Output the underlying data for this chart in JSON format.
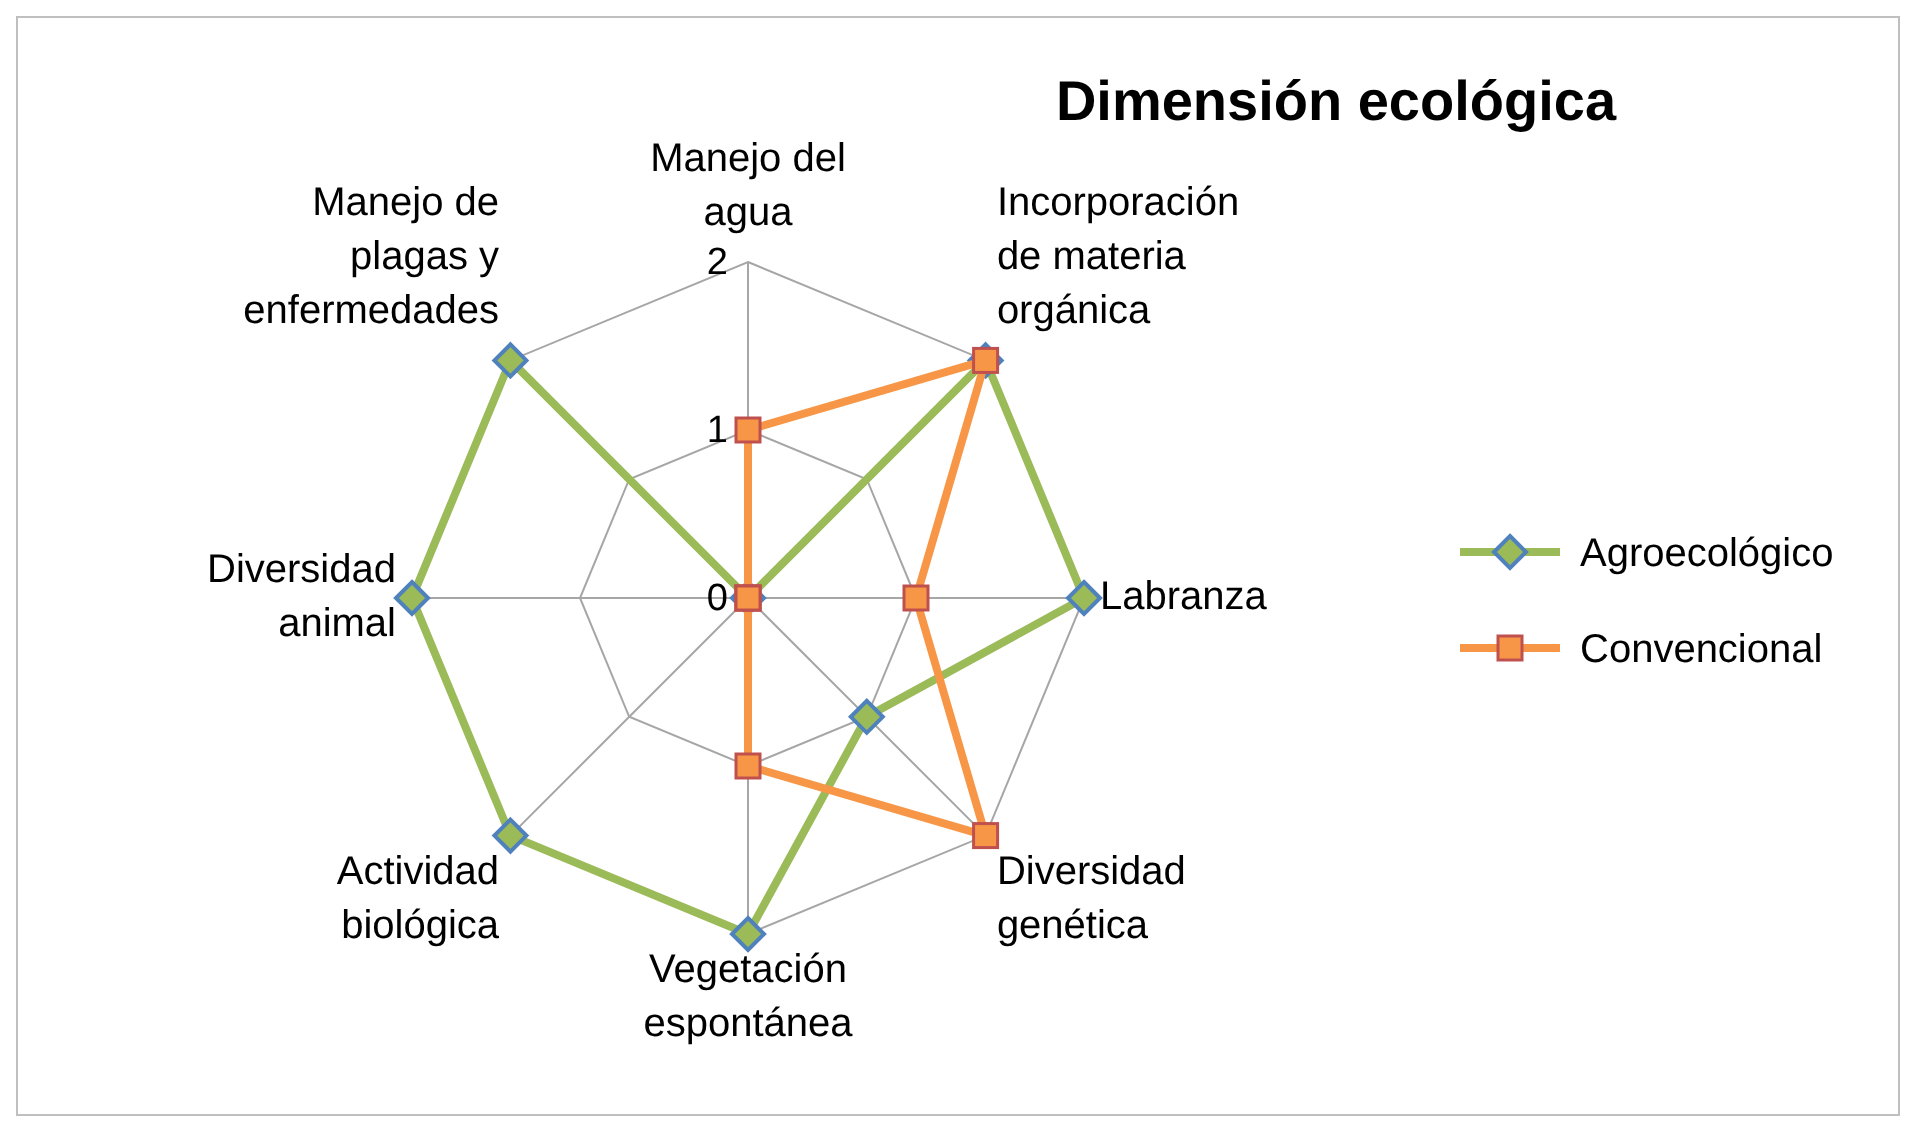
{
  "chart_data": {
    "type": "radar",
    "title": "Dimensión ecológica",
    "categories": [
      "Manejo del agua",
      "Incorporación de materia orgánica",
      "Labranza",
      "Diversidad genética",
      "Vegetación espontánea",
      "Actividad biológica",
      "Diversidad animal",
      "Manejo de plagas y enfermedades"
    ],
    "series": [
      {
        "name": "Agroecológico",
        "color": "#9bbb59",
        "marker": "diamond",
        "values": [
          0,
          2,
          2,
          1,
          2,
          2,
          2,
          2
        ]
      },
      {
        "name": "Convencional",
        "color": "#f79646",
        "marker": "square",
        "values": [
          1,
          2,
          1,
          2,
          1,
          0,
          0,
          0
        ]
      }
    ],
    "ylim": [
      0,
      2
    ],
    "yticks": [
      0,
      1,
      2
    ],
    "grid": true,
    "legend": "right"
  }
}
